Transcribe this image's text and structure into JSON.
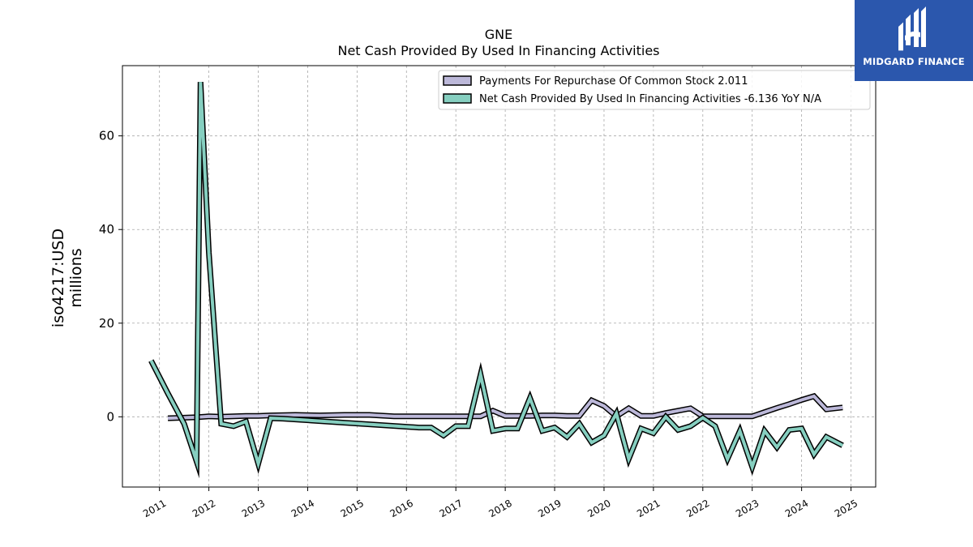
{
  "chart_data": {
    "type": "line",
    "title": "GNE",
    "subtitle": "Net Cash Provided By Used In Financing Activities",
    "ylabel_line1": "iso4217:USD",
    "ylabel_line2": "millions",
    "xlabel": "",
    "ylim": [
      -15,
      75
    ],
    "xlim": [
      2010.25,
      2025.5
    ],
    "yticks": [
      0,
      20,
      40,
      60
    ],
    "xticks": [
      "2011",
      "2012",
      "2013",
      "2014",
      "2015",
      "2016",
      "2017",
      "2018",
      "2019",
      "2020",
      "2021",
      "2022",
      "2023",
      "2024",
      "2025"
    ],
    "grid": true,
    "legend_position": "top-right",
    "legend": [
      "Payments For Repurchase Of Common Stock  2.011",
      "Net Cash Provided By Used In Financing Activities  -6.136 YoY N/A"
    ],
    "series": [
      {
        "name": "Payments For Repurchase Of Common Stock",
        "color": "#bcb8d9",
        "x": [
          2011.17,
          2011.75,
          2012.0,
          2012.25,
          2012.5,
          2012.75,
          2013.0,
          2013.25,
          2013.75,
          2014.25,
          2014.75,
          2015.25,
          2015.75,
          2016.25,
          2016.75,
          2017.0,
          2017.25,
          2017.5,
          2017.75,
          2018.0,
          2018.25,
          2018.5,
          2018.75,
          2019.0,
          2019.25,
          2019.5,
          2019.75,
          2020.0,
          2020.25,
          2020.5,
          2020.75,
          2021.0,
          2021.25,
          2021.5,
          2021.75,
          2022.0,
          2022.25,
          2022.5,
          2022.75,
          2023.0,
          2023.25,
          2023.5,
          2023.75,
          2024.0,
          2024.25,
          2024.5,
          2024.83
        ],
        "values": [
          -0.3,
          -0.1,
          0.1,
          0.0,
          0.1,
          0.2,
          0.2,
          0.3,
          0.4,
          0.3,
          0.4,
          0.4,
          0.1,
          0.1,
          0.1,
          0.1,
          0.1,
          0.1,
          1.3,
          0.2,
          0.2,
          0.2,
          0.3,
          0.3,
          0.2,
          0.2,
          3.5,
          2.3,
          0.1,
          1.8,
          0.2,
          0.2,
          0.8,
          1.3,
          1.8,
          0.1,
          0.1,
          0.1,
          0.1,
          0.1,
          1.0,
          1.9,
          2.7,
          3.6,
          4.4,
          1.6,
          2.0
        ]
      },
      {
        "name": "Net Cash Provided By Used In Financing Activities",
        "color": "#86cfc0",
        "x": [
          2010.83,
          2011.17,
          2011.5,
          2011.75,
          2011.83,
          2012.0,
          2012.25,
          2012.5,
          2012.75,
          2013.0,
          2013.25,
          2013.5,
          2016.25,
          2016.5,
          2016.75,
          2017.0,
          2017.25,
          2017.5,
          2017.75,
          2018.0,
          2018.25,
          2018.5,
          2018.75,
          2019.0,
          2019.25,
          2019.5,
          2019.75,
          2020.0,
          2020.25,
          2020.5,
          2020.75,
          2021.0,
          2021.25,
          2021.5,
          2021.75,
          2022.0,
          2022.25,
          2022.5,
          2022.75,
          2023.0,
          2023.25,
          2023.5,
          2023.75,
          2024.0,
          2024.25,
          2024.5,
          2024.83
        ],
        "values": [
          12.0,
          5.0,
          -1.5,
          -9.5,
          71.5,
          35.0,
          -1.5,
          -2.0,
          -1.0,
          -10.0,
          -0.3,
          -0.4,
          -2.3,
          -2.3,
          -4.0,
          -2.0,
          -2.0,
          9.0,
          -3.0,
          -2.5,
          -2.5,
          4.0,
          -3.0,
          -2.3,
          -4.3,
          -1.5,
          -5.5,
          -4.0,
          0.7,
          -9.0,
          -2.5,
          -3.5,
          0.0,
          -2.8,
          -2.0,
          -0.2,
          -2.0,
          -9.0,
          -3.0,
          -10.7,
          -3.0,
          -6.5,
          -2.8,
          -2.5,
          -8.0,
          -4.3,
          -6.1
        ]
      }
    ]
  },
  "logo": {
    "text": "MIDGARD FINANCE",
    "color": "#2b57ad"
  }
}
